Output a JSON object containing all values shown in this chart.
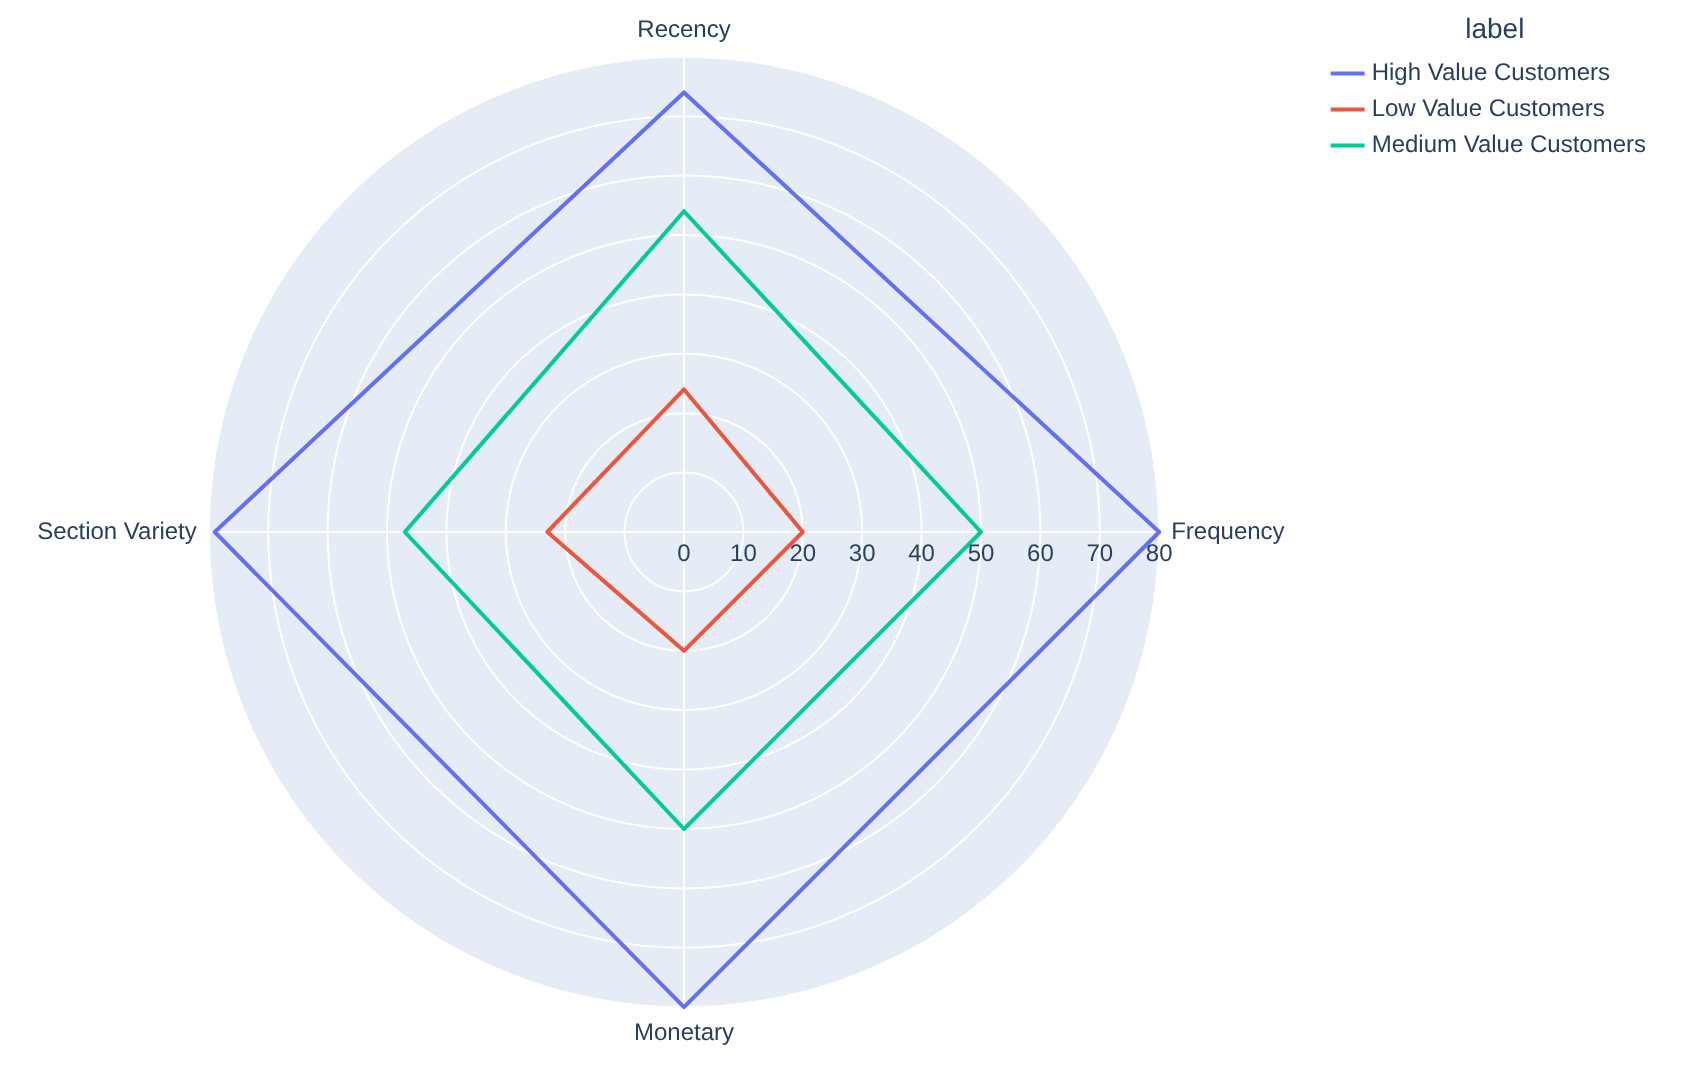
{
  "chart_data": {
    "type": "radar",
    "categories": [
      "Recency",
      "Frequency",
      "Monetary",
      "Section Variety"
    ],
    "series": [
      {
        "name": "High Value Customers",
        "color": "#636efa",
        "values": [
          74,
          80,
          80,
          79
        ]
      },
      {
        "name": "Low Value Customers",
        "color": "#ef553b",
        "values": [
          24,
          20,
          20,
          23
        ]
      },
      {
        "name": "Medium Value Customers",
        "color": "#00cc96",
        "values": [
          54,
          50,
          50,
          47
        ]
      }
    ],
    "ylim": [
      0,
      80
    ],
    "yticks": [
      0,
      10,
      20,
      30,
      40,
      50,
      60,
      70,
      80
    ],
    "grid": true,
    "legend": "top right",
    "legend_title": "label",
    "marker": "none",
    "line_style": "solid"
  }
}
